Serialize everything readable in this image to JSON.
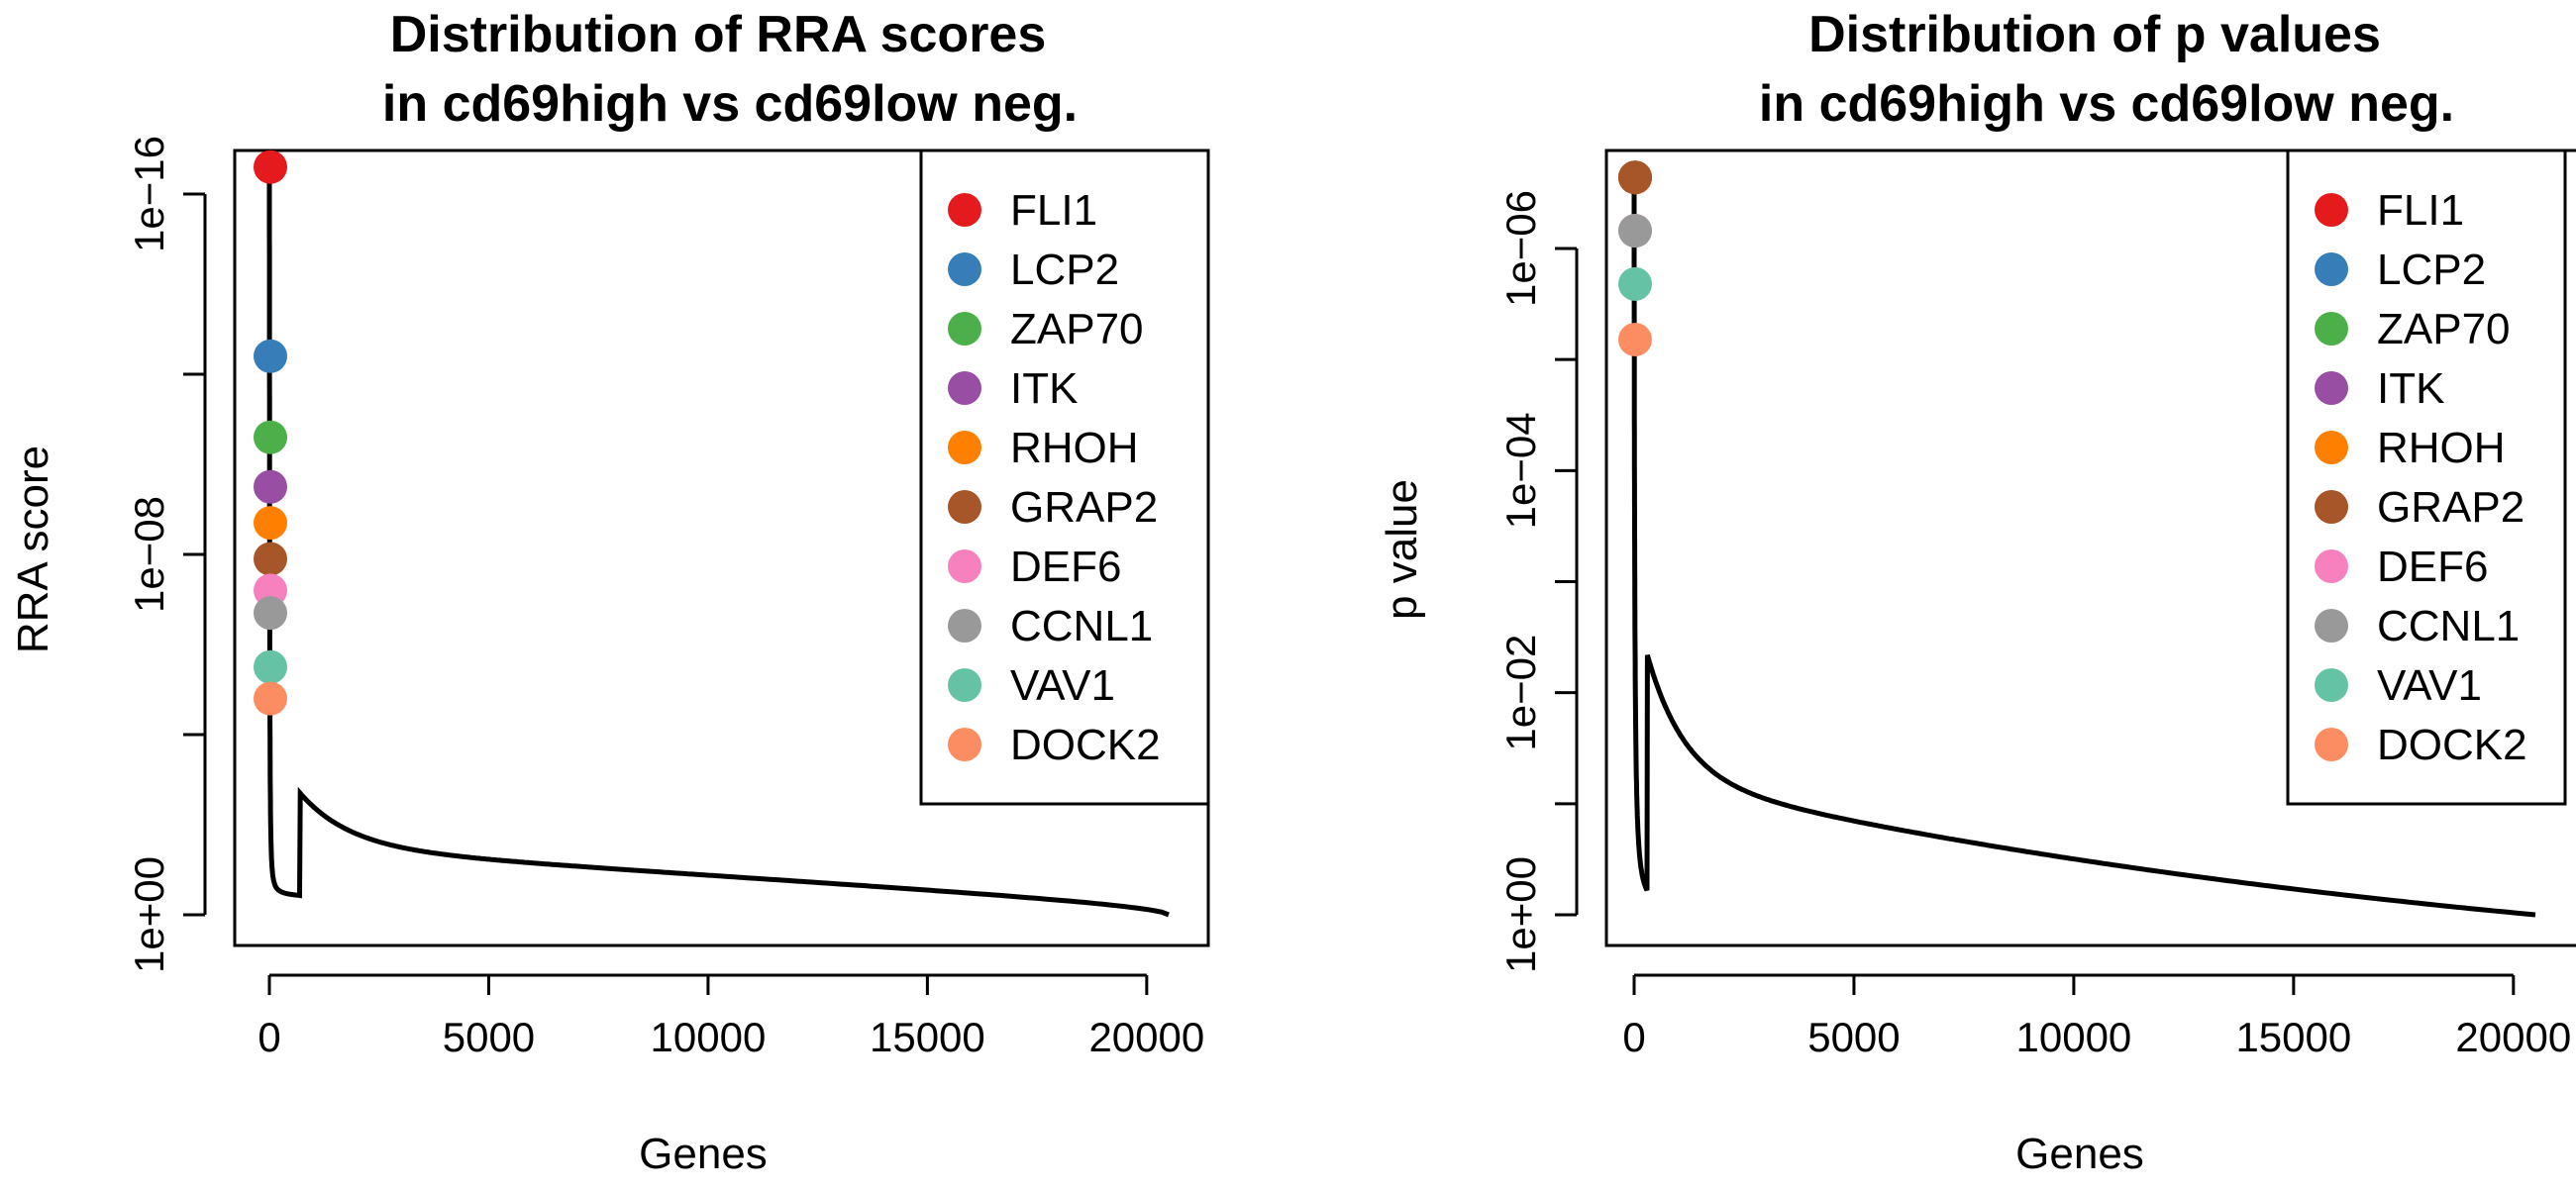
{
  "chart_data": [
    {
      "type": "line",
      "title": [
        "Distribution of RRA scores",
        "in cd69high vs cd69low neg."
      ],
      "xlabel": "Genes",
      "ylabel": "RRA score",
      "y_scale": "log (reversed)",
      "xlim": [
        0,
        20500
      ],
      "x_ticks": [
        "0",
        "5000",
        "10000",
        "15000",
        "20000"
      ],
      "y_ticks": [
        "1e−16",
        "1e−08",
        "1e+00"
      ],
      "y_tick_exponents": [
        -16,
        -8,
        0
      ],
      "n_genes": 20500,
      "legend_position": "top-right",
      "highlighted_genes": [
        {
          "gene": "FLI1",
          "color": "#E41A1C",
          "log10": -16.6
        },
        {
          "gene": "LCP2",
          "color": "#377EB8",
          "log10": -12.4
        },
        {
          "gene": "ZAP70",
          "color": "#4DAF4A",
          "log10": -10.6
        },
        {
          "gene": "ITK",
          "color": "#984EA3",
          "log10": -9.5
        },
        {
          "gene": "RHOH",
          "color": "#FF7F00",
          "log10": -8.7
        },
        {
          "gene": "GRAP2",
          "color": "#A65628",
          "log10": -7.9
        },
        {
          "gene": "DEF6",
          "color": "#F781BF",
          "log10": -7.2
        },
        {
          "gene": "CCNL1",
          "color": "#999999",
          "log10": -6.7
        },
        {
          "gene": "VAV1",
          "color": "#66C2A5",
          "log10": -5.5
        },
        {
          "gene": "DOCK2",
          "color": "#FC8D62",
          "log10": -4.8
        }
      ]
    },
    {
      "type": "line",
      "title": [
        "Distribution of p values",
        "in cd69high vs cd69low neg."
      ],
      "xlabel": "Genes",
      "ylabel": "p value",
      "y_scale": "log (reversed)",
      "xlim": [
        0,
        20500
      ],
      "x_ticks": [
        "0",
        "5000",
        "10000",
        "15000",
        "20000"
      ],
      "y_ticks": [
        "1e−06",
        "1e−04",
        "1e−02",
        "1e+00"
      ],
      "y_tick_exponents": [
        -6,
        -4,
        -2,
        0
      ],
      "n_genes": 20500,
      "legend_position": "top-right",
      "highlighted_genes": [
        {
          "gene": "FLI1",
          "color": "#E41A1C",
          "log10": -6.64
        },
        {
          "gene": "LCP2",
          "color": "#377EB8",
          "log10": -6.64
        },
        {
          "gene": "ZAP70",
          "color": "#4DAF4A",
          "log10": -6.64
        },
        {
          "gene": "ITK",
          "color": "#984EA3",
          "log10": -6.64
        },
        {
          "gene": "RHOH",
          "color": "#FF7F00",
          "log10": -6.64
        },
        {
          "gene": "GRAP2",
          "color": "#A65628",
          "log10": -6.64
        },
        {
          "gene": "DEF6",
          "color": "#F781BF",
          "log10": -6.16
        },
        {
          "gene": "CCNL1",
          "color": "#999999",
          "log10": -6.16
        },
        {
          "gene": "VAV1",
          "color": "#66C2A5",
          "log10": -5.68
        },
        {
          "gene": "DOCK2",
          "color": "#FC8D62",
          "log10": -5.18
        }
      ]
    }
  ]
}
